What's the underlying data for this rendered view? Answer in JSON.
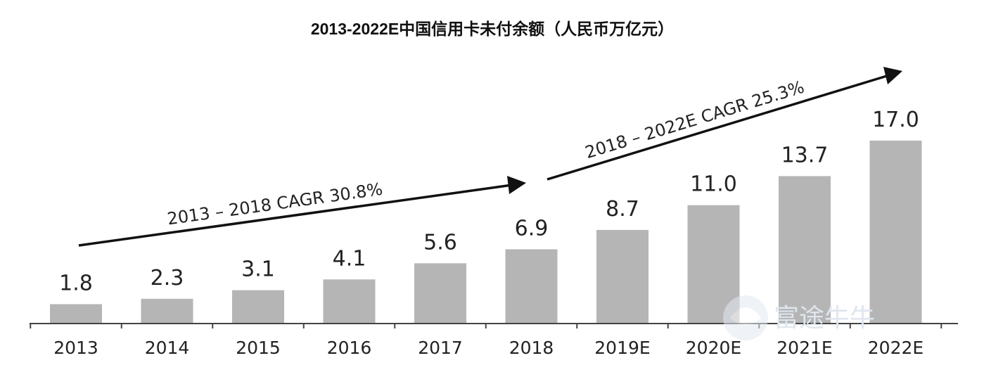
{
  "chart_data": {
    "type": "bar",
    "title": "2013-2022E中国信用卡未付余额（人民币万亿元）",
    "categories": [
      "2013",
      "2014",
      "2015",
      "2016",
      "2017",
      "2018",
      "2019E",
      "2020E",
      "2021E",
      "2022E"
    ],
    "values": [
      1.8,
      2.3,
      3.1,
      4.1,
      5.6,
      6.9,
      8.7,
      11.0,
      13.7,
      17.0
    ],
    "value_labels": [
      "1.8",
      "2.3",
      "3.1",
      "4.1",
      "5.6",
      "6.9",
      "8.7",
      "11.0",
      "13.7",
      "17.0"
    ],
    "xlabel": "",
    "ylabel": "",
    "ylim": [
      0,
      17
    ],
    "grid": false,
    "bar_color": "#b5b5b5",
    "annotations": [
      {
        "text": "2013 – 2018 CAGR 30.8%",
        "from": "2013",
        "to": "2018"
      },
      {
        "text": "2018 – 2022E CAGR 25.3%",
        "from": "2018",
        "to": "2022E"
      }
    ]
  },
  "watermark": {
    "text": "富途牛牛"
  }
}
